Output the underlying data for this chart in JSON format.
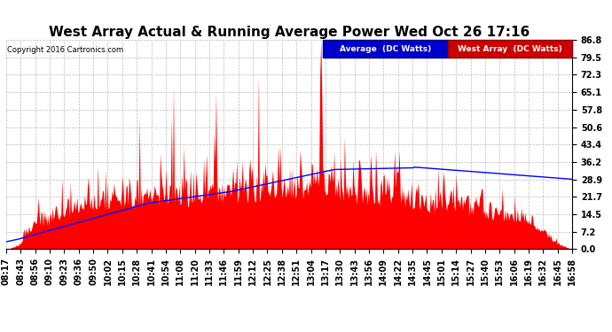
{
  "title": "West Array Actual & Running Average Power Wed Oct 26 17:16",
  "copyright": "Copyright 2016 Cartronics.com",
  "legend_avg_label": "Average  (DC Watts)",
  "legend_west_label": "West Array  (DC Watts)",
  "yticks": [
    0.0,
    7.2,
    14.5,
    21.7,
    28.9,
    36.2,
    43.4,
    50.6,
    57.8,
    65.1,
    72.3,
    79.5,
    86.8
  ],
  "ymax": 86.8,
  "ymin": 0.0,
  "xtick_labels": [
    "08:17",
    "08:43",
    "08:56",
    "09:10",
    "09:23",
    "09:36",
    "09:50",
    "10:02",
    "10:15",
    "10:28",
    "10:41",
    "10:54",
    "11:08",
    "11:20",
    "11:33",
    "11:46",
    "11:59",
    "12:12",
    "12:25",
    "12:38",
    "12:51",
    "13:04",
    "13:17",
    "13:30",
    "13:43",
    "13:56",
    "14:09",
    "14:22",
    "14:35",
    "14:45",
    "15:01",
    "15:14",
    "15:27",
    "15:40",
    "15:53",
    "16:06",
    "16:19",
    "16:32",
    "16:45",
    "16:58"
  ],
  "background_color": "#ffffff",
  "bar_color": "#ff0000",
  "line_color": "#0000ff",
  "grid_color": "#bbbbbb",
  "title_fontsize": 11,
  "tick_fontsize": 7,
  "n_points": 600,
  "legend_avg_bg": "#0000cc",
  "legend_west_bg": "#cc0000"
}
